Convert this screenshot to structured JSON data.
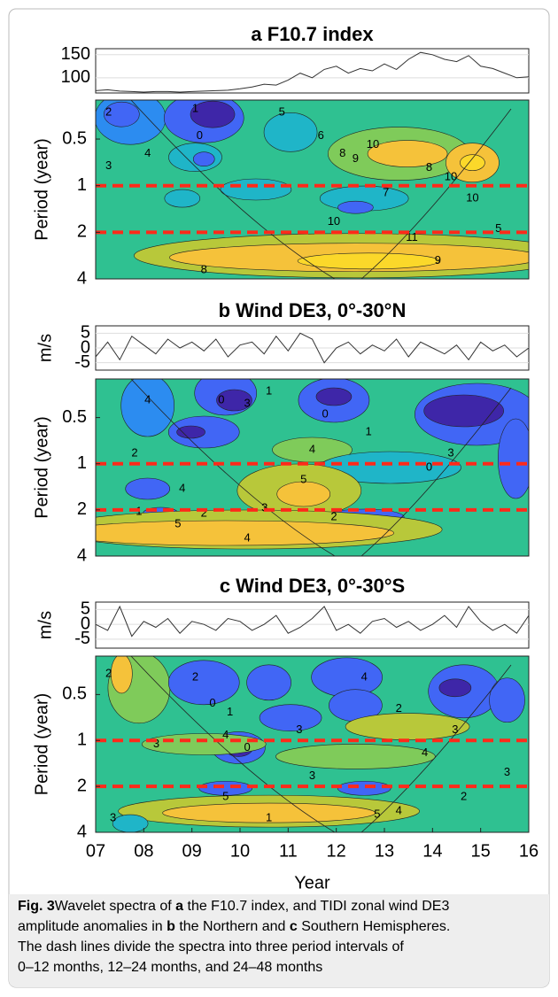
{
  "chart_data": [
    {
      "type": "wavelet",
      "title": "a  F10.7 index",
      "series": {
        "x": [
          7,
          7.25,
          7.5,
          7.75,
          8,
          8.25,
          8.5,
          8.75,
          9,
          9.25,
          9.5,
          9.75,
          10,
          10.25,
          10.5,
          10.75,
          11,
          11.25,
          11.5,
          11.75,
          12,
          12.25,
          12.5,
          12.75,
          13,
          13.25,
          13.5,
          13.75,
          14,
          14.25,
          14.5,
          14.75,
          15,
          15.25,
          15.5,
          15.75,
          16
        ],
        "values": [
          72,
          74,
          71,
          70,
          69,
          70,
          70,
          69,
          70,
          71,
          72,
          73,
          76,
          80,
          86,
          84,
          95,
          110,
          100,
          118,
          125,
          110,
          120,
          115,
          130,
          118,
          140,
          155,
          150,
          140,
          135,
          148,
          125,
          120,
          110,
          100,
          102
        ],
        "color": "#333333",
        "ylim": [
          67,
          163
        ],
        "yticks": [
          100,
          150
        ]
      },
      "spectrum": {
        "ylabel": "Period (year)",
        "log": true,
        "ylim": [
          0.28,
          4
        ],
        "yticks": [
          0.5,
          1,
          2,
          4
        ],
        "hlines": [
          1,
          2
        ],
        "hline_color": "#ff2a1a",
        "contour_labels": [
          2,
          1,
          0,
          5,
          3,
          4,
          6,
          8,
          10,
          9,
          7,
          8,
          10,
          11,
          10,
          9,
          8,
          5,
          10
        ]
      },
      "xlim": [
        7,
        16
      ]
    },
    {
      "type": "wavelet",
      "title": "b  Wind DE3, 0°-30°N",
      "series": {
        "ylabel": "m/s",
        "x": [
          7,
          7.25,
          7.5,
          7.75,
          8,
          8.25,
          8.5,
          8.75,
          9,
          9.25,
          9.5,
          9.75,
          10,
          10.25,
          10.5,
          10.75,
          11,
          11.25,
          11.5,
          11.75,
          12,
          12.25,
          12.5,
          12.75,
          13,
          13.25,
          13.5,
          13.75,
          14,
          14.25,
          14.5,
          14.75,
          15,
          15.25,
          15.5,
          15.75,
          16
        ],
        "values": [
          -3,
          2,
          -4,
          4,
          1,
          -2,
          3,
          0,
          2,
          -1,
          3,
          -3,
          1,
          2,
          -2,
          4,
          -1,
          5,
          3,
          -5,
          0,
          2,
          -2,
          1,
          -1,
          3,
          -3,
          2,
          0,
          -2,
          1,
          -4,
          2,
          -1,
          1,
          -3,
          0
        ],
        "color": "#333333",
        "ylim": [
          -7.5,
          7.5
        ],
        "yticks": [
          -5,
          0,
          5
        ]
      },
      "spectrum": {
        "ylabel": "Period (year)",
        "log": true,
        "ylim": [
          0.28,
          4
        ],
        "yticks": [
          0.5,
          1,
          2,
          4
        ],
        "hlines": [
          1,
          2
        ],
        "hline_color": "#ff2a1a",
        "contour_labels": [
          4,
          1,
          0,
          2,
          3,
          4,
          1,
          0,
          5,
          4,
          3,
          2,
          1,
          0,
          3,
          2,
          4,
          5
        ]
      },
      "xlim": [
        7,
        16
      ]
    },
    {
      "type": "wavelet",
      "title": "c  Wind DE3, 0°-30°S",
      "series": {
        "ylabel": "m/s",
        "x": [
          7,
          7.25,
          7.5,
          7.75,
          8,
          8.25,
          8.5,
          8.75,
          9,
          9.25,
          9.5,
          9.75,
          10,
          10.25,
          10.5,
          10.75,
          11,
          11.25,
          11.5,
          11.75,
          12,
          12.25,
          12.5,
          12.75,
          13,
          13.25,
          13.5,
          13.75,
          14,
          14.25,
          14.5,
          14.75,
          15,
          15.25,
          15.5,
          15.75,
          16
        ],
        "values": [
          0,
          -2,
          6,
          -4,
          1,
          -1,
          2,
          -3,
          1,
          0,
          -2,
          2,
          1,
          -2,
          0,
          3,
          -3,
          -1,
          2,
          6,
          -2,
          0,
          -3,
          1,
          2,
          -1,
          1,
          -2,
          0,
          3,
          -1,
          6,
          1,
          -2,
          0,
          -3,
          3
        ],
        "color": "#333333",
        "ylim": [
          -8,
          7.5
        ],
        "yticks": [
          -5,
          0,
          5
        ]
      },
      "spectrum": {
        "ylabel": "Period (year)",
        "log": true,
        "ylim": [
          0.28,
          4
        ],
        "yticks": [
          0.5,
          1,
          2,
          4
        ],
        "hlines": [
          1,
          2
        ],
        "hline_color": "#ff2a1a",
        "contour_labels": [
          2,
          0,
          1,
          2,
          3,
          4,
          0,
          3,
          4,
          5,
          3,
          4,
          2,
          3,
          4,
          5,
          1,
          2,
          3,
          3
        ]
      },
      "xlim": [
        7,
        16
      ],
      "xlabel": "Year",
      "xticks": [
        {
          "value": 7,
          "label": "07"
        },
        {
          "value": 8,
          "label": "08"
        },
        {
          "value": 9,
          "label": "09"
        },
        10,
        11,
        12,
        13,
        14,
        15,
        16
      ]
    }
  ],
  "caption": {
    "label": "Fig. 3",
    "lines": [
      [
        {
          "text": "Wavelet spectra of ",
          "bold": false
        },
        {
          "text": "a",
          "bold": true
        },
        {
          "text": " the F10.7 index, and TIDI zonal wind DE3",
          "bold": false
        }
      ],
      [
        {
          "text": "amplitude anomalies in ",
          "bold": false
        },
        {
          "text": "b",
          "bold": true
        },
        {
          "text": " the Northern and ",
          "bold": false
        },
        {
          "text": "c",
          "bold": true
        },
        {
          "text": " Southern Hemispheres.",
          "bold": false
        }
      ],
      [
        {
          "text": "The dash lines divide the spectra into three period intervals of",
          "bold": false
        }
      ],
      [
        {
          "text": "0–12 months, 12–24 months, and 24–48 months",
          "bold": false
        }
      ]
    ]
  }
}
